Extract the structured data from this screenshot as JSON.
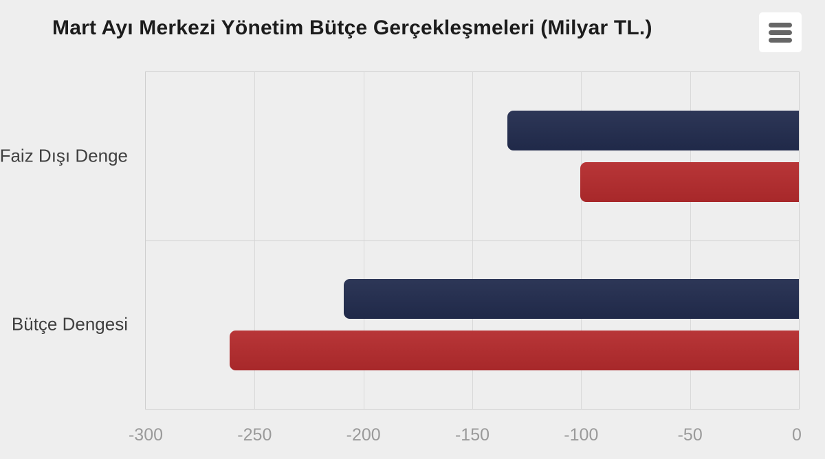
{
  "header": {
    "title": "Mart Ayı Merkezi Yönetim Bütçe Gerçekleşmeleri (Milyar TL.)",
    "menu_icon": "hamburger-icon"
  },
  "colors": {
    "background": "#eeeeee",
    "plot_border": "#cfcfcf",
    "gridline": "#d9d9d9",
    "title_text": "#1c1c1c",
    "category_text": "#404040",
    "tick_text": "#9a9a9a",
    "menu_icon_bars": "#666666",
    "navy": "#222c4e",
    "red": "#b42b2d"
  },
  "chart_data": {
    "type": "bar",
    "orientation": "horizontal",
    "title": "Mart Ayı Merkezi Yönetim Bütçe Gerçekleşmeleri (Milyar TL.)",
    "categories": [
      "Faiz Dışı Denge",
      "Bütçe Dengesi"
    ],
    "series": [
      {
        "name": "navy-series",
        "color": "#222c4e",
        "values": [
          -134,
          -209
        ]
      },
      {
        "name": "red-series",
        "color": "#b42b2d",
        "values": [
          -100.5,
          -261.5
        ]
      }
    ],
    "xlim": [
      -300,
      0
    ],
    "x_ticks": [
      -300,
      -250,
      -200,
      -150,
      -100,
      -50,
      0
    ],
    "x_tick_labels": [
      "-300",
      "-250",
      "-200",
      "-150",
      "-100",
      "-50",
      "0"
    ],
    "grid": true,
    "legend": "none",
    "unit": "Milyar TL"
  }
}
